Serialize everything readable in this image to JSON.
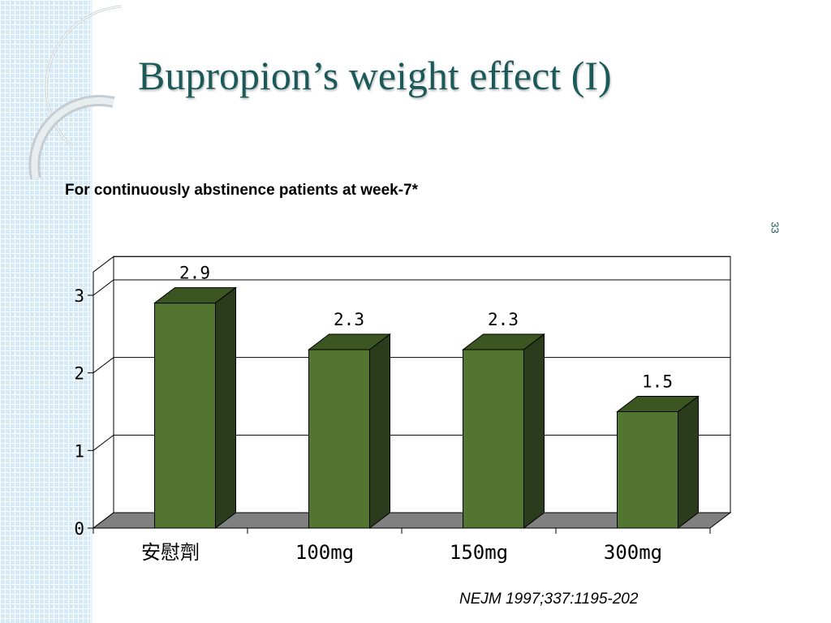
{
  "slide": {
    "title": "Bupropion’s weight effect (I)",
    "subtitle": "For continuously abstinence patients at week-7*",
    "slide_number": "33",
    "citation": "NEJM 1997;337:1195-202"
  },
  "colors": {
    "title": "#1c5a5a",
    "bar_front": "#527530",
    "bar_top": "#3b5620",
    "bar_side": "#2a3c1b",
    "floor": "#808080",
    "side_strip": "#d5eaf7"
  },
  "chart_data": {
    "type": "bar",
    "style": "3d",
    "categories": [
      "安慰劑",
      "100mg",
      "150mg",
      "300mg"
    ],
    "values": [
      2.9,
      2.3,
      2.3,
      1.5
    ],
    "value_labels": [
      "2.9",
      "2.3",
      "2.3",
      "1.5"
    ],
    "title": "",
    "xlabel": "",
    "ylabel": "",
    "ylim": [
      0,
      3.3
    ],
    "yticks": [
      0,
      1,
      2,
      3
    ],
    "grid": true,
    "legend": "none"
  }
}
